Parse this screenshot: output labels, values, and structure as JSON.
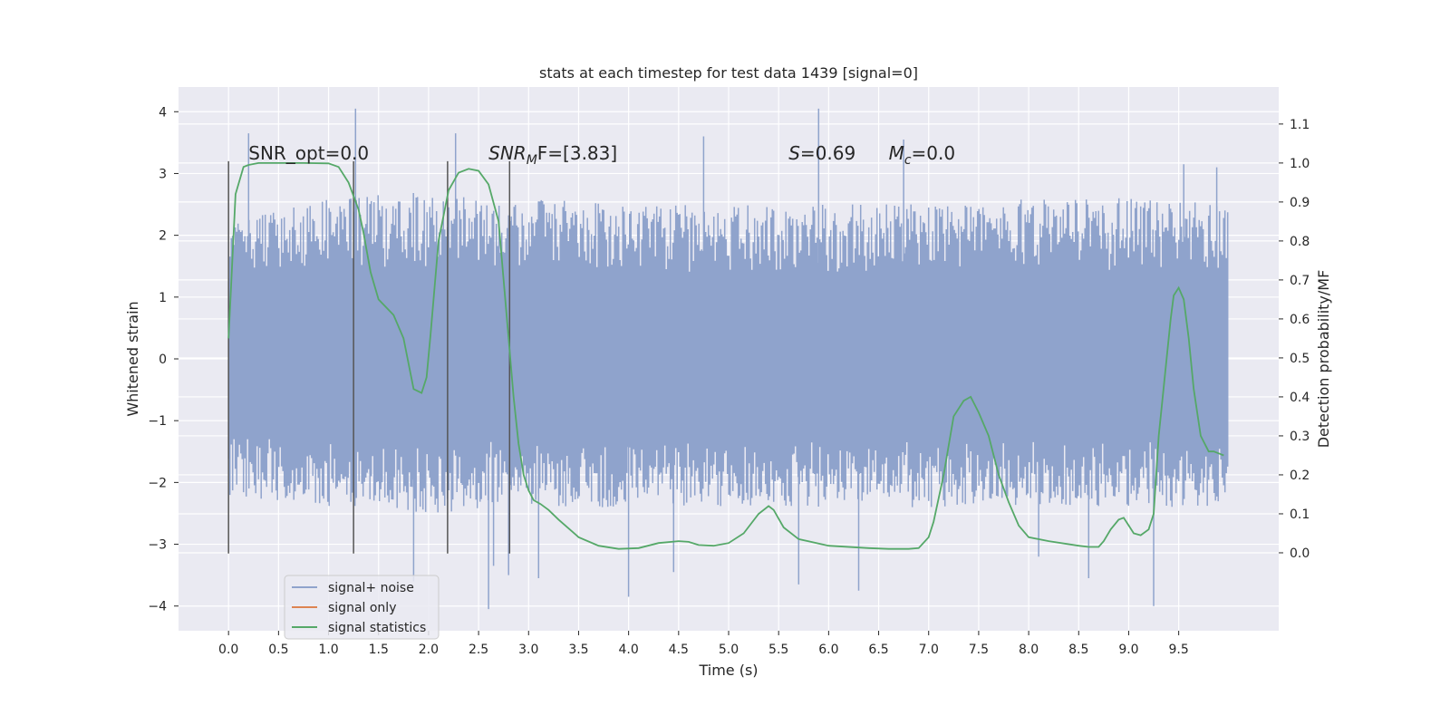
{
  "chart_data": {
    "type": "line",
    "title": "stats at each timestep for test data 1439 [signal=0]",
    "xlabel": "Time (s)",
    "ylabel_left": "Whitened strain",
    "ylabel_right": "Detection probability/MF",
    "xlim": [
      -0.5,
      10.5
    ],
    "ylim_left": [
      -4.4,
      4.4
    ],
    "ylim_right": [
      -0.2,
      1.195
    ],
    "x_ticks": [
      0.0,
      0.5,
      1.0,
      1.5,
      2.0,
      2.5,
      3.0,
      3.5,
      4.0,
      4.5,
      5.0,
      5.5,
      6.0,
      6.5,
      7.0,
      7.5,
      8.0,
      8.5,
      9.0,
      9.5
    ],
    "x_tick_labels": [
      "0.0",
      "0.5",
      "1.0",
      "1.5",
      "2.0",
      "2.5",
      "3.0",
      "3.5",
      "4.0",
      "4.5",
      "5.0",
      "5.5",
      "6.0",
      "6.5",
      "7.0",
      "7.5",
      "8.0",
      "8.5",
      "9.0",
      "9.5"
    ],
    "y_left_ticks": [
      -4,
      -3,
      -2,
      -1,
      0,
      1,
      2,
      3,
      4
    ],
    "y_left_tick_labels": [
      "−4",
      "−3",
      "−2",
      "−1",
      "0",
      "1",
      "2",
      "3",
      "4"
    ],
    "y_right_ticks": [
      0.0,
      0.1,
      0.2,
      0.3,
      0.4,
      0.5,
      0.6,
      0.7,
      0.8,
      0.9,
      1.0,
      1.1
    ],
    "y_right_tick_labels": [
      "0.0",
      "0.1",
      "0.2",
      "0.3",
      "0.4",
      "0.5",
      "0.6",
      "0.7",
      "0.8",
      "0.9",
      "1.0",
      "1.1"
    ],
    "grid": true,
    "legend_position": "lower-left",
    "series": [
      {
        "name": "signal+ noise",
        "axis": "left",
        "color": "#8fa3cc",
        "kind": "noise",
        "x_range": [
          0.0,
          9.99
        ],
        "core_amplitude": 1.3,
        "envelope_upper": [
          [
            0.0,
            2.2
          ],
          [
            1.0,
            2.6
          ],
          [
            2.0,
            2.7
          ],
          [
            3.0,
            2.6
          ],
          [
            4.0,
            2.5
          ],
          [
            5.0,
            2.5
          ],
          [
            6.0,
            2.5
          ],
          [
            7.0,
            2.5
          ],
          [
            8.0,
            2.6
          ],
          [
            9.0,
            2.6
          ],
          [
            9.99,
            2.5
          ]
        ],
        "envelope_lower": [
          [
            0.0,
            -2.2
          ],
          [
            1.0,
            -2.4
          ],
          [
            2.0,
            -2.5
          ],
          [
            3.0,
            -2.4
          ],
          [
            4.0,
            -2.4
          ],
          [
            5.0,
            -2.4
          ],
          [
            6.0,
            -2.4
          ],
          [
            7.0,
            -2.4
          ],
          [
            8.0,
            -2.4
          ],
          [
            9.0,
            -2.4
          ],
          [
            9.99,
            -2.4
          ]
        ],
        "notable_peaks": [
          [
            1.27,
            4.05
          ],
          [
            0.2,
            3.65
          ],
          [
            2.27,
            3.65
          ],
          [
            4.75,
            3.6
          ],
          [
            5.9,
            4.05
          ],
          [
            6.75,
            3.55
          ],
          [
            9.55,
            3.15
          ],
          [
            9.88,
            3.1
          ]
        ],
        "notable_troughs": [
          [
            2.6,
            -4.05
          ],
          [
            1.85,
            -3.6
          ],
          [
            2.65,
            -3.35
          ],
          [
            2.8,
            -3.5
          ],
          [
            3.1,
            -3.55
          ],
          [
            4.0,
            -3.85
          ],
          [
            4.45,
            -3.45
          ],
          [
            5.7,
            -3.65
          ],
          [
            6.3,
            -3.75
          ],
          [
            8.1,
            -3.2
          ],
          [
            8.6,
            -3.55
          ],
          [
            9.25,
            -4.0
          ]
        ]
      },
      {
        "name": "signal only",
        "axis": "left",
        "color": "#dd8452",
        "kind": "line",
        "x": [
          0.0,
          9.99
        ],
        "y": [
          0.0,
          0.0
        ]
      },
      {
        "name": "signal statistics",
        "axis": "right",
        "color": "#55a868",
        "kind": "line",
        "x": [
          0.0,
          0.07,
          0.15,
          0.2,
          0.3,
          0.5,
          0.75,
          1.0,
          1.1,
          1.2,
          1.3,
          1.35,
          1.42,
          1.5,
          1.65,
          1.75,
          1.85,
          1.93,
          1.98,
          2.02,
          2.1,
          2.2,
          2.3,
          2.4,
          2.5,
          2.6,
          2.7,
          2.75,
          2.8,
          2.85,
          2.9,
          2.95,
          3.0,
          3.05,
          3.12,
          3.2,
          3.3,
          3.5,
          3.7,
          3.9,
          4.1,
          4.3,
          4.5,
          4.6,
          4.7,
          4.85,
          5.0,
          5.15,
          5.3,
          5.4,
          5.45,
          5.55,
          5.7,
          6.0,
          6.4,
          6.6,
          6.8,
          6.9,
          7.0,
          7.05,
          7.15,
          7.25,
          7.35,
          7.42,
          7.5,
          7.6,
          7.7,
          7.8,
          7.9,
          8.0,
          8.2,
          8.5,
          8.6,
          8.7,
          8.75,
          8.82,
          8.9,
          8.95,
          9.0,
          9.05,
          9.12,
          9.2,
          9.25,
          9.3,
          9.38,
          9.42,
          9.45,
          9.5,
          9.55,
          9.6,
          9.65,
          9.72,
          9.8,
          9.85,
          9.9,
          9.95
        ],
        "y": [
          0.55,
          0.92,
          0.99,
          0.995,
          1.0,
          1.0,
          1.0,
          0.999,
          0.99,
          0.95,
          0.88,
          0.82,
          0.72,
          0.65,
          0.61,
          0.55,
          0.42,
          0.41,
          0.45,
          0.56,
          0.8,
          0.93,
          0.975,
          0.985,
          0.98,
          0.945,
          0.85,
          0.7,
          0.55,
          0.4,
          0.28,
          0.2,
          0.16,
          0.135,
          0.125,
          0.11,
          0.085,
          0.04,
          0.018,
          0.01,
          0.012,
          0.025,
          0.03,
          0.028,
          0.02,
          0.018,
          0.025,
          0.05,
          0.1,
          0.12,
          0.11,
          0.065,
          0.035,
          0.018,
          0.012,
          0.01,
          0.01,
          0.012,
          0.04,
          0.08,
          0.2,
          0.35,
          0.39,
          0.4,
          0.36,
          0.3,
          0.2,
          0.13,
          0.07,
          0.04,
          0.03,
          0.018,
          0.015,
          0.015,
          0.03,
          0.06,
          0.085,
          0.09,
          0.07,
          0.05,
          0.045,
          0.06,
          0.1,
          0.3,
          0.5,
          0.6,
          0.66,
          0.68,
          0.65,
          0.55,
          0.42,
          0.3,
          0.26,
          0.26,
          0.255,
          0.25
        ]
      }
    ],
    "vertical_markers": [
      {
        "x": 0.0,
        "y_min": -3.15,
        "y_max": 3.2
      },
      {
        "x": 1.25,
        "y_min": -3.15,
        "y_max": 3.2
      },
      {
        "x": 2.19,
        "y_min": -3.15,
        "y_max": 3.2
      },
      {
        "x": 2.81,
        "y_min": -3.15,
        "y_max": 3.2
      }
    ],
    "annotations": [
      {
        "name": "annotation-snr-opt",
        "x": 0.2,
        "y": 3.2,
        "text": "SNR_opt=0.0"
      },
      {
        "name": "annotation-snr-mf",
        "x": 2.6,
        "y": 3.2,
        "pre": "SNR",
        "sub": "M",
        "post": "F=[3.83]",
        "italic_pre": true,
        "italic_sub": true
      },
      {
        "name": "annotation-s",
        "x": 5.6,
        "y": 3.2,
        "pre": "S",
        "sub": "",
        "post": "=0.69",
        "italic_pre": true
      },
      {
        "name": "annotation-mc",
        "x": 6.6,
        "y": 3.2,
        "pre": "M",
        "sub": "c",
        "post": "=0.0",
        "italic_pre": true,
        "italic_sub": true
      }
    ]
  }
}
